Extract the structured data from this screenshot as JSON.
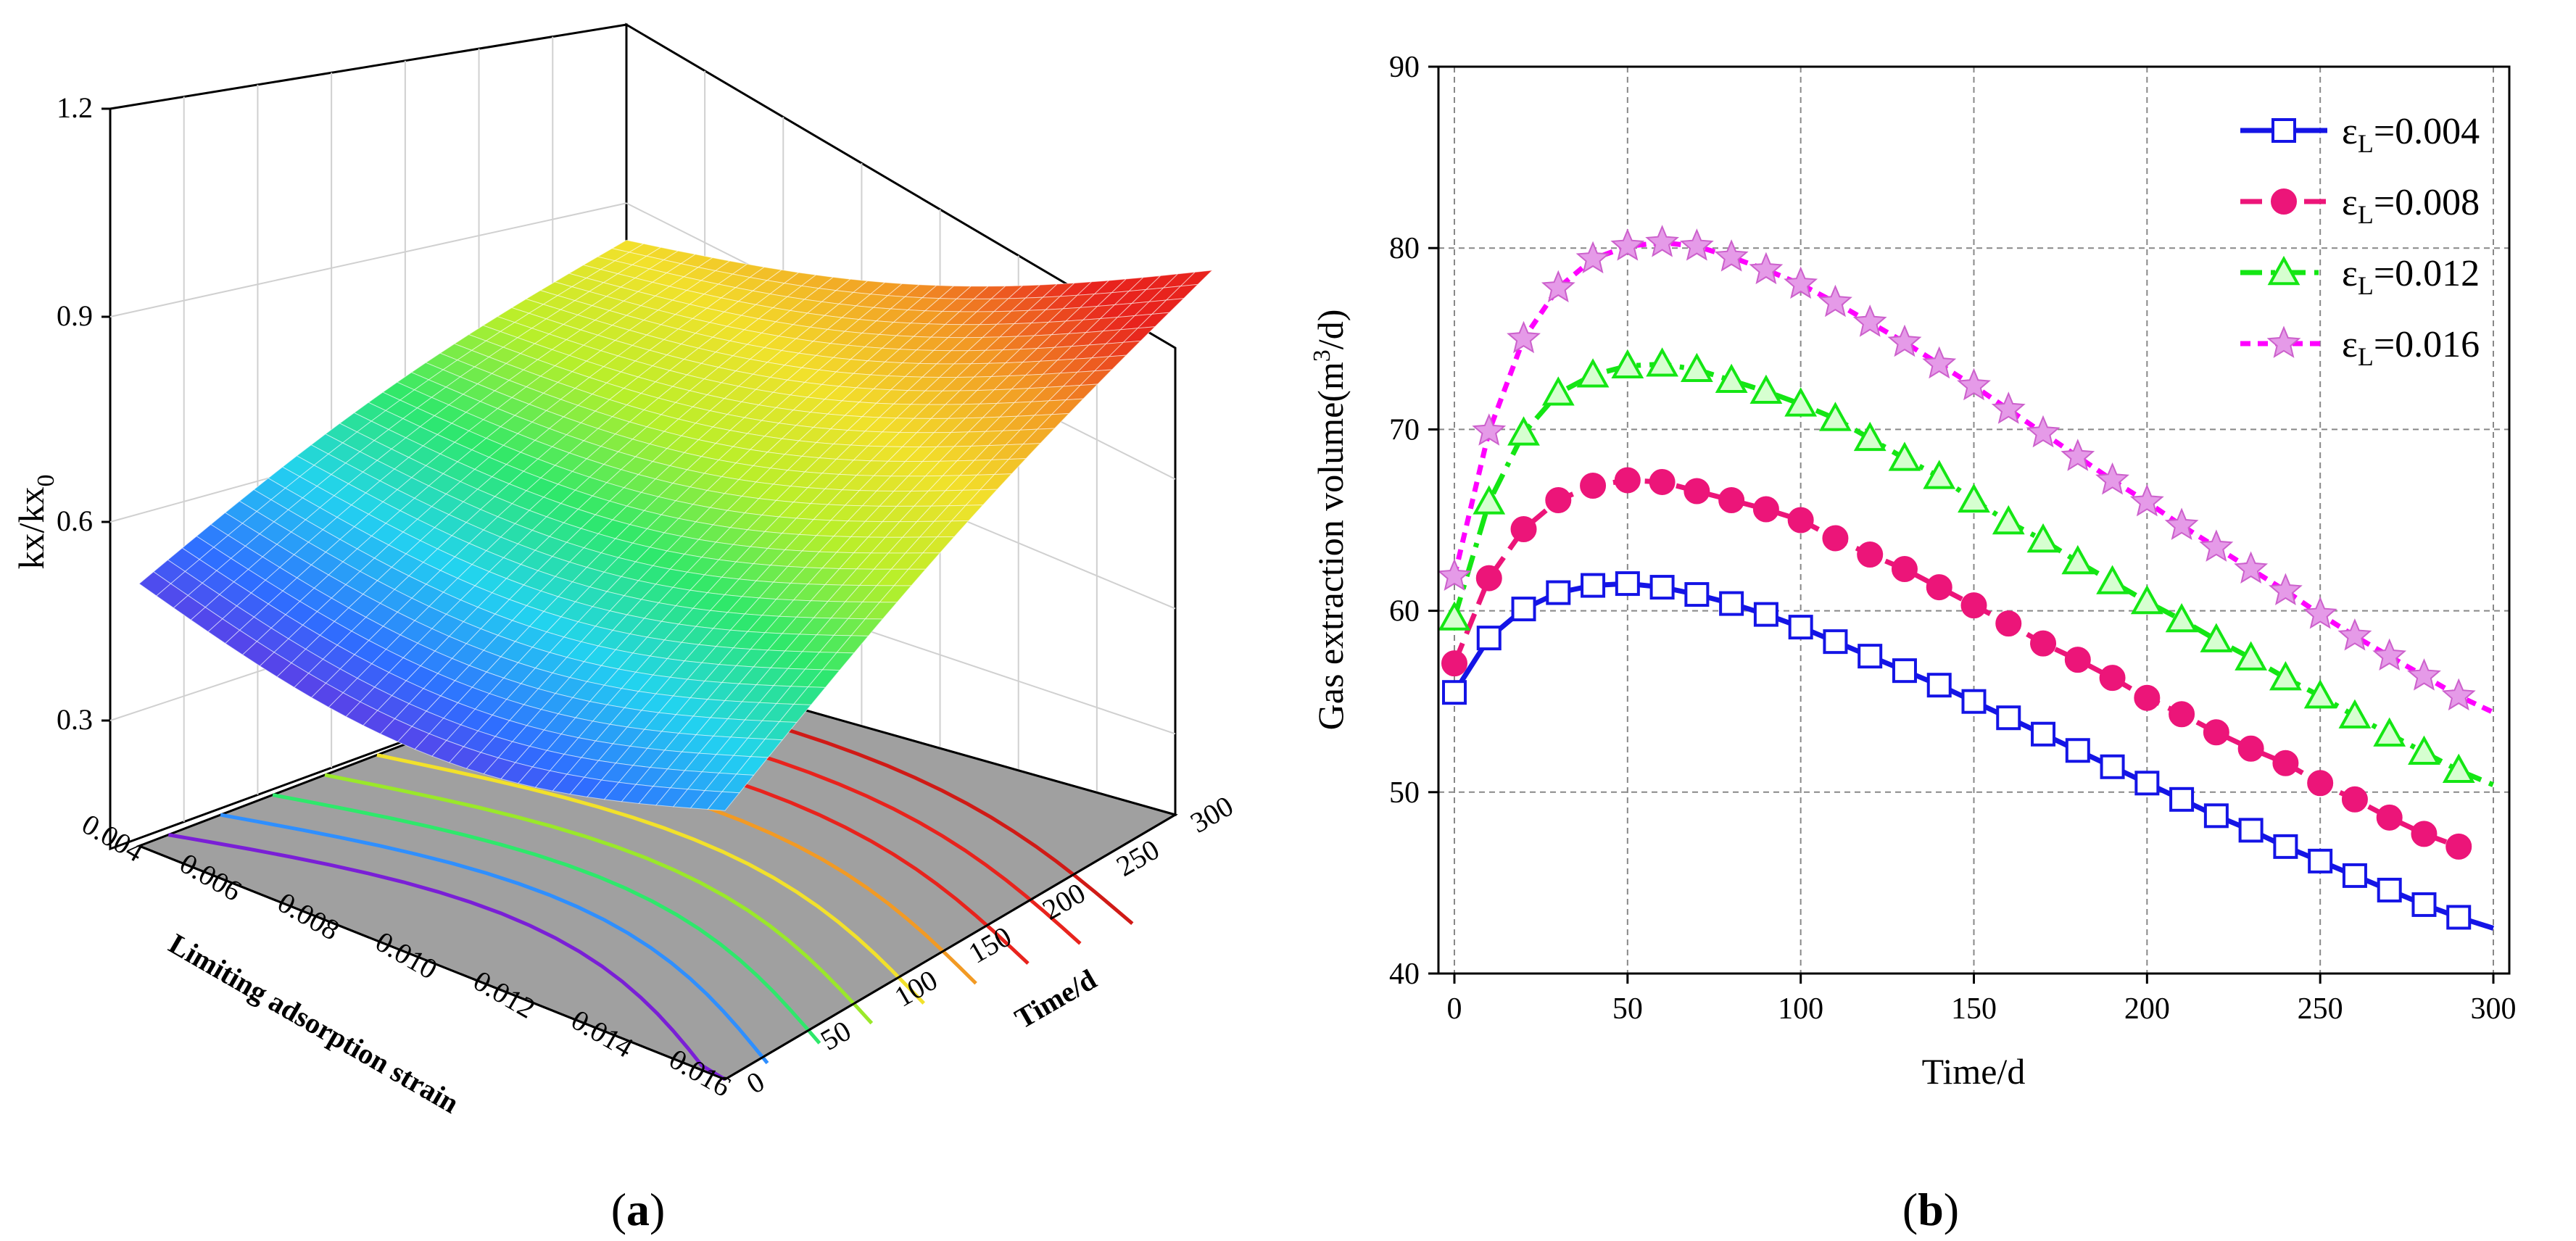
{
  "panel_a": {
    "caption_open": "(",
    "caption_letter": "a",
    "caption_close": ")",
    "z_axis_label": "kx/kx",
    "z_axis_label_sub": "0",
    "x_axis_label": "Limiting adsorption strain",
    "y_axis_label": "Time/d",
    "z_ticks": [
      "0.3",
      "0.6",
      "0.9",
      "1.2"
    ],
    "x_ticks": [
      "0.004",
      "0.006",
      "0.008",
      "0.010",
      "0.012",
      "0.014",
      "0.016"
    ],
    "y_ticks": [
      "0",
      "50",
      "100",
      "150",
      "200",
      "250",
      "300"
    ]
  },
  "panel_b": {
    "caption_open": "(",
    "caption_letter": "b",
    "caption_close": ")"
  },
  "chart_data": [
    {
      "type": "surface3d",
      "x_label": "Limiting adsorption strain",
      "y_label": "Time/d",
      "z_label": "kx/kx0",
      "xlim": [
        0.004,
        0.016
      ],
      "ylim": [
        0,
        300
      ],
      "zlim": [
        0.15,
        1.2
      ],
      "surface_corner_values": {
        "x0.004_t0": 0.55,
        "x0.016_t0": 0.56,
        "x0.004_t300": 0.79,
        "x0.016_t300": 1.1
      },
      "colormap": [
        "#7a1fd6",
        "#2f6dff",
        "#22d3f0",
        "#2ee86b",
        "#b8ef2a",
        "#f2e12b",
        "#f29a24",
        "#e8231d"
      ],
      "contour_colors": [
        "#7a1fd6",
        "#2f8fff",
        "#2ee86b",
        "#9ae82a",
        "#f2e12b",
        "#f29a24",
        "#e8231d",
        "#e8231d",
        "#d01a16"
      ]
    },
    {
      "type": "line",
      "xlabel": "Time/d",
      "ylabel": "Gas extraction volume(m",
      "ylabel_sup": "3",
      "ylabel_tail": "/d)",
      "xlim": [
        0,
        300
      ],
      "ylim": [
        40,
        90
      ],
      "xticks": [
        0,
        50,
        100,
        150,
        200,
        250,
        300
      ],
      "yticks": [
        40,
        50,
        60,
        70,
        80,
        90
      ],
      "grid": true,
      "legend_position": "top-right",
      "x": [
        0,
        10,
        20,
        30,
        40,
        50,
        60,
        70,
        80,
        90,
        100,
        110,
        120,
        130,
        140,
        150,
        160,
        170,
        180,
        190,
        200,
        210,
        220,
        230,
        240,
        250,
        260,
        270,
        280,
        290
      ],
      "series": [
        {
          "name": "ε",
          "name_sub": "L",
          "name_value": "=0.004",
          "color": "#1414e6",
          "marker": "square",
          "dash": "solid",
          "values": [
            55.5,
            58.5,
            60.1,
            61.0,
            61.4,
            61.5,
            61.3,
            60.9,
            60.4,
            59.8,
            59.1,
            58.3,
            57.5,
            56.7,
            55.9,
            55.0,
            54.1,
            53.2,
            52.3,
            51.4,
            50.5,
            49.6,
            48.7,
            47.9,
            47.0,
            46.2,
            45.4,
            44.6,
            43.8,
            43.1
          ],
          "line_end": [
            300,
            42.5
          ]
        },
        {
          "name": "ε",
          "name_sub": "L",
          "name_value": "=0.008",
          "color": "#ec1579",
          "marker": "circle",
          "dash": "long",
          "values": [
            57.1,
            61.8,
            64.5,
            66.1,
            66.9,
            67.2,
            67.1,
            66.6,
            66.1,
            65.6,
            65.0,
            64.0,
            63.1,
            62.3,
            61.3,
            60.3,
            59.3,
            58.2,
            57.3,
            56.3,
            55.2,
            54.3,
            53.3,
            52.4,
            51.6,
            50.5,
            49.6,
            48.6,
            47.7,
            47.0
          ],
          "line_end": [
            290,
            47.0
          ]
        },
        {
          "name": "ε",
          "name_sub": "L",
          "name_value": "=0.012",
          "color": "#14e614",
          "marker": "triangle",
          "dash": "dashdot",
          "values": [
            59.6,
            66.0,
            69.8,
            72.0,
            73.0,
            73.5,
            73.6,
            73.3,
            72.7,
            72.1,
            71.4,
            70.6,
            69.5,
            68.4,
            67.4,
            66.1,
            64.9,
            63.9,
            62.7,
            61.6,
            60.5,
            59.5,
            58.4,
            57.4,
            56.3,
            55.3,
            54.2,
            53.2,
            52.2,
            51.2
          ],
          "line_end": [
            300,
            50.4
          ]
        },
        {
          "name": "ε",
          "name_sub": "L",
          "name_value": "=0.016",
          "color": "#ff00ff",
          "marker": "star",
          "dash": "short",
          "values": [
            61.9,
            69.9,
            75.0,
            77.8,
            79.4,
            80.1,
            80.3,
            80.1,
            79.5,
            78.8,
            78.0,
            77.0,
            75.9,
            74.8,
            73.6,
            72.4,
            71.1,
            69.8,
            68.5,
            67.2,
            66.0,
            64.7,
            63.5,
            62.3,
            61.1,
            59.8,
            58.6,
            57.5,
            56.4,
            55.3
          ],
          "line_end": [
            300,
            54.4
          ]
        }
      ]
    }
  ]
}
